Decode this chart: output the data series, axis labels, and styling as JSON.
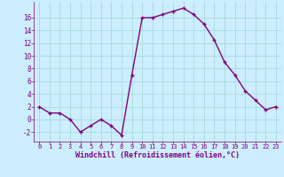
{
  "x": [
    0,
    1,
    2,
    3,
    4,
    5,
    6,
    7,
    8,
    9,
    10,
    11,
    12,
    13,
    14,
    15,
    16,
    17,
    18,
    19,
    20,
    21,
    22,
    23
  ],
  "y": [
    2,
    1,
    1,
    0,
    -2,
    -1,
    0,
    -1,
    -2.5,
    7,
    16,
    16,
    16.5,
    17,
    17.5,
    16.5,
    15,
    12.5,
    9,
    7,
    4.5,
    3,
    1.5,
    2
  ],
  "line_color": "#800080",
  "marker": "+",
  "marker_color": "#800080",
  "bg_color": "#cceeff",
  "grid_color": "#aadddd",
  "xlabel": "Windchill (Refroidissement éolien,°C)",
  "xlabel_color": "#800080",
  "tick_color": "#800080",
  "ylim": [
    -3.5,
    18.5
  ],
  "xlim": [
    -0.5,
    23.5
  ],
  "yticks": [
    -2,
    0,
    2,
    4,
    6,
    8,
    10,
    12,
    14,
    16
  ],
  "xticks": [
    0,
    1,
    2,
    3,
    4,
    5,
    6,
    7,
    8,
    9,
    10,
    11,
    12,
    13,
    14,
    15,
    16,
    17,
    18,
    19,
    20,
    21,
    22,
    23
  ],
  "linewidth": 1.0,
  "markersize": 3
}
